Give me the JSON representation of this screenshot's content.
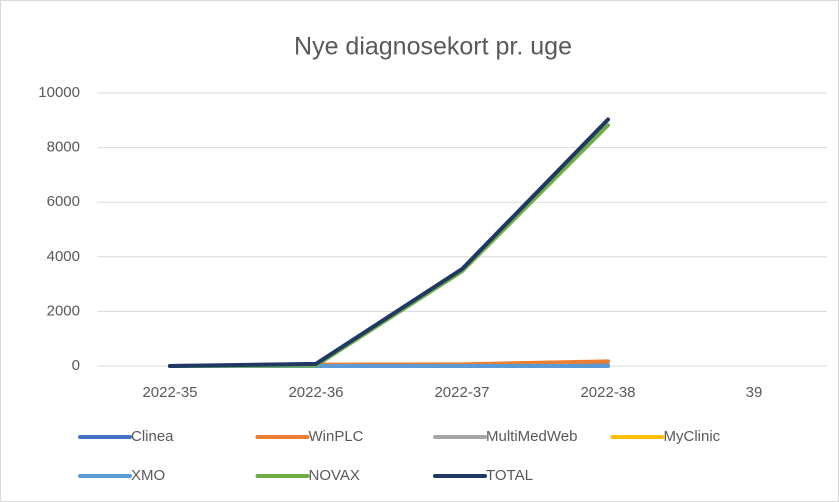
{
  "chart_data": {
    "type": "line",
    "title": "Nye diagnosekort pr. uge",
    "categories": [
      "2022-35",
      "2022-36",
      "2022-37",
      "2022-38",
      "39"
    ],
    "series": [
      {
        "name": "Clinea",
        "color": "#4472c4",
        "values": [
          0,
          10,
          20,
          30,
          null
        ]
      },
      {
        "name": "WinPLC",
        "color": "#ed7d31",
        "values": [
          0,
          50,
          60,
          170,
          null
        ]
      },
      {
        "name": "MultiMedWeb",
        "color": "#a5a5a5",
        "values": [
          0,
          0,
          0,
          10,
          null
        ]
      },
      {
        "name": "MyClinic",
        "color": "#ffc000",
        "values": [
          0,
          0,
          0,
          0,
          null
        ]
      },
      {
        "name": "XMO",
        "color": "#5b9bd5",
        "values": [
          0,
          0,
          0,
          0,
          null
        ]
      },
      {
        "name": "NOVAX",
        "color": "#70ad47",
        "values": [
          0,
          20,
          3470,
          8820,
          null
        ]
      },
      {
        "name": "TOTAL",
        "color": "#203864",
        "values": [
          0,
          80,
          3550,
          9030,
          null
        ]
      }
    ],
    "ylim": [
      0,
      10000
    ],
    "yticks": [
      0,
      2000,
      4000,
      6000,
      8000,
      10000
    ],
    "grid": true,
    "legend": "bottom"
  }
}
